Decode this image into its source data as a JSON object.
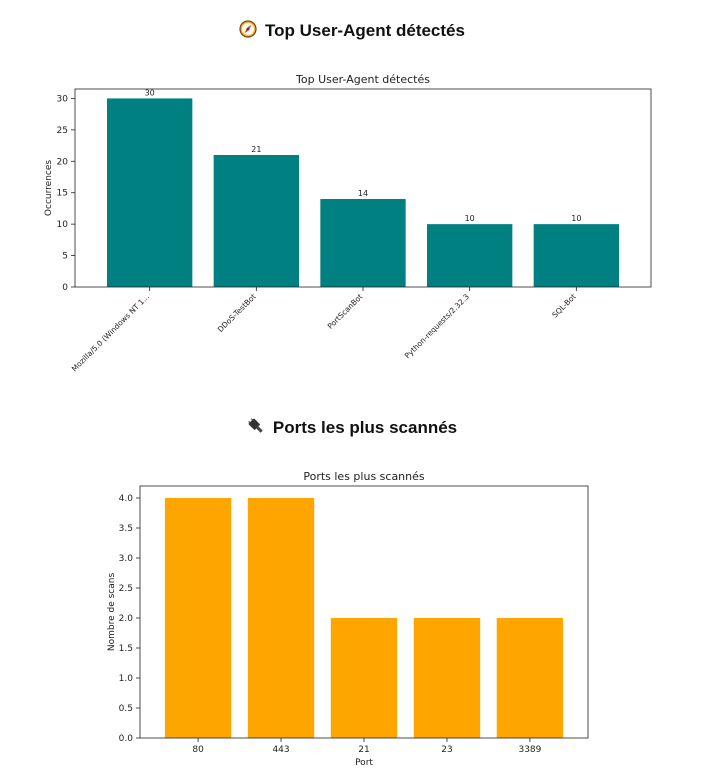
{
  "sections": [
    {
      "heading": "Top User-Agent détectés",
      "icon": "compass-icon"
    },
    {
      "heading": "Ports les plus scannés",
      "icon": "ethernet-plug-icon"
    }
  ],
  "chart_data": [
    {
      "type": "bar",
      "title": "Top User-Agent détectés",
      "xlabel": "",
      "ylabel": "Occurrences",
      "categories": [
        "Mozilla/5.0 (Windows NT 1...",
        "DDoS-TestBot",
        "PortScanBot",
        "Python-requests/2.32.3",
        "SQL-Bot"
      ],
      "values": [
        30,
        21,
        14,
        10,
        10
      ],
      "data_labels": [
        "30",
        "21",
        "14",
        "10",
        "10"
      ],
      "ylim": [
        0,
        31.5
      ],
      "yticks": [
        0,
        5,
        10,
        15,
        20,
        25,
        30
      ],
      "ytick_labels": [
        "0",
        "5",
        "10",
        "15",
        "20",
        "25",
        "30"
      ],
      "color": "#008080",
      "grid": false
    },
    {
      "type": "bar",
      "title": "Ports les plus scannés",
      "xlabel": "Port",
      "ylabel": "Nombre de scans",
      "categories": [
        "80",
        "443",
        "21",
        "23",
        "3389"
      ],
      "values": [
        4,
        4,
        2,
        2,
        2
      ],
      "ylim": [
        0,
        4.2
      ],
      "yticks": [
        0,
        0.5,
        1,
        1.5,
        2,
        2.5,
        3,
        3.5,
        4
      ],
      "ytick_labels": [
        "0.0",
        "0.5",
        "1.0",
        "1.5",
        "2.0",
        "2.5",
        "3.0",
        "3.5",
        "4.0"
      ],
      "color": "#FFA500",
      "grid": false
    }
  ]
}
